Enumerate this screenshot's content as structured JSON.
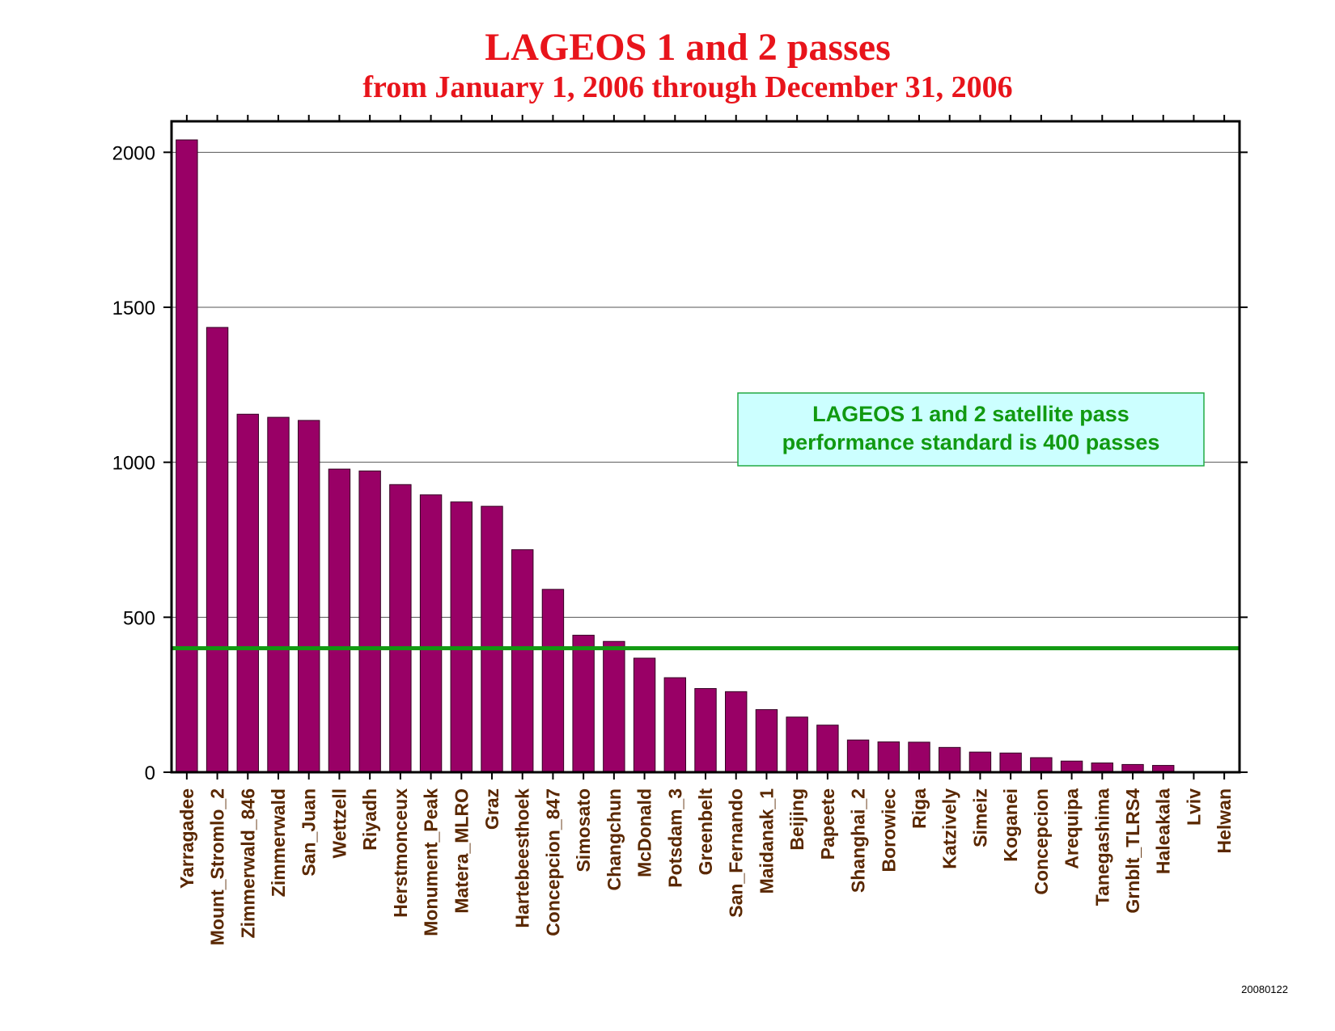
{
  "chart_data": {
    "type": "bar",
    "title": "LAGEOS 1 and 2 passes",
    "subtitle": "from January 1, 2006 through December 31, 2006",
    "xlabel": "",
    "ylabel": "",
    "ylim": [
      0,
      2100
    ],
    "yticks": [
      0,
      500,
      1000,
      1500,
      2000
    ],
    "grid": true,
    "categories": [
      "Yarragadee",
      "Mount_Stromlo_2",
      "Zimmerwald_846",
      "Zimmerwald",
      "San_Juan",
      "Wettzell",
      "Riyadh",
      "Herstmonceux",
      "Monument_Peak",
      "Matera_MLRO",
      "Graz",
      "Hartebeesthoek",
      "Concepcion_847",
      "Simosato",
      "Changchun",
      "McDonald",
      "Potsdam_3",
      "Greenbelt",
      "San_Fernando",
      "Maidanak_1",
      "Beijing",
      "Papeete",
      "Shanghai_2",
      "Borowiec",
      "Riga",
      "Katzively",
      "Simeiz",
      "Koganei",
      "Concepcion",
      "Arequipa",
      "Tanegashima",
      "Grnblt_TLRS4",
      "Haleakala",
      "Lviv",
      "Helwan"
    ],
    "values": [
      2040,
      1435,
      1155,
      1145,
      1135,
      978,
      972,
      928,
      895,
      872,
      858,
      718,
      590,
      442,
      422,
      368,
      305,
      270,
      260,
      202,
      178,
      152,
      104,
      98,
      97,
      80,
      65,
      62,
      47,
      36,
      30,
      25,
      22,
      0,
      0
    ],
    "bar_color": "#990066",
    "reference_line": {
      "value": 400,
      "color": "#119911"
    },
    "annotation": {
      "lines": [
        "LAGEOS 1 and 2 satellite pass",
        "performance standard is 400 passes"
      ],
      "background": "#ccffff",
      "border": "#22aa44"
    },
    "footer": "20080122"
  }
}
